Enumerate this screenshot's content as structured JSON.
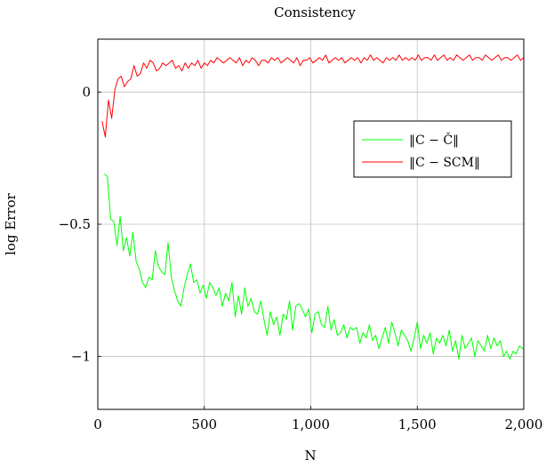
{
  "chart_data": {
    "type": "line",
    "title": "Consistency",
    "xlabel": "N",
    "ylabel": "log Error",
    "xlim": [
      0,
      2000
    ],
    "ylim": [
      -1.2,
      0.2
    ],
    "x_ticks": [
      0,
      500,
      1000,
      1500,
      2000
    ],
    "x_tick_labels": [
      "0",
      "500",
      "1,000",
      "1,500",
      "2,000"
    ],
    "y_ticks": [
      -1,
      -0.5,
      0
    ],
    "y_tick_labels": [
      "−1",
      "−0.5",
      "0"
    ],
    "grid": true,
    "legend_position": "right",
    "series": [
      {
        "name": "‖C − Č‖",
        "color": "#00ff00",
        "x": [
          30,
          45,
          60,
          75,
          90,
          105,
          120,
          135,
          150,
          165,
          180,
          195,
          210,
          225,
          240,
          255,
          270,
          285,
          300,
          315,
          330,
          345,
          360,
          375,
          390,
          405,
          420,
          435,
          450,
          465,
          480,
          495,
          510,
          525,
          540,
          555,
          570,
          585,
          600,
          615,
          630,
          645,
          660,
          675,
          690,
          705,
          720,
          735,
          750,
          765,
          780,
          795,
          810,
          825,
          840,
          855,
          870,
          885,
          900,
          915,
          930,
          945,
          960,
          975,
          990,
          1005,
          1020,
          1035,
          1050,
          1065,
          1080,
          1095,
          1110,
          1125,
          1140,
          1155,
          1170,
          1185,
          1200,
          1215,
          1230,
          1245,
          1260,
          1275,
          1290,
          1305,
          1320,
          1335,
          1350,
          1365,
          1380,
          1395,
          1410,
          1425,
          1440,
          1455,
          1470,
          1485,
          1500,
          1515,
          1530,
          1545,
          1560,
          1575,
          1590,
          1605,
          1620,
          1635,
          1650,
          1665,
          1680,
          1695,
          1710,
          1725,
          1740,
          1755,
          1770,
          1785,
          1800,
          1815,
          1830,
          1845,
          1860,
          1875,
          1890,
          1905,
          1920,
          1935,
          1950,
          1965,
          1980,
          1995,
          2000
        ],
        "values": [
          -0.31,
          -0.32,
          -0.48,
          -0.49,
          -0.58,
          -0.47,
          -0.6,
          -0.55,
          -0.62,
          -0.53,
          -0.64,
          -0.67,
          -0.72,
          -0.74,
          -0.7,
          -0.71,
          -0.6,
          -0.66,
          -0.68,
          -0.69,
          -0.57,
          -0.7,
          -0.75,
          -0.79,
          -0.81,
          -0.74,
          -0.69,
          -0.65,
          -0.72,
          -0.71,
          -0.76,
          -0.73,
          -0.78,
          -0.72,
          -0.74,
          -0.77,
          -0.74,
          -0.81,
          -0.76,
          -0.79,
          -0.72,
          -0.85,
          -0.77,
          -0.84,
          -0.74,
          -0.81,
          -0.78,
          -0.83,
          -0.84,
          -0.79,
          -0.86,
          -0.92,
          -0.83,
          -0.88,
          -0.85,
          -0.92,
          -0.84,
          -0.86,
          -0.79,
          -0.9,
          -0.81,
          -0.8,
          -0.82,
          -0.85,
          -0.82,
          -0.91,
          -0.84,
          -0.83,
          -0.88,
          -0.89,
          -0.81,
          -0.9,
          -0.86,
          -0.92,
          -0.91,
          -0.88,
          -0.93,
          -0.89,
          -0.9,
          -0.89,
          -0.95,
          -0.91,
          -0.93,
          -0.88,
          -0.94,
          -0.92,
          -0.97,
          -0.93,
          -0.89,
          -0.95,
          -0.87,
          -0.91,
          -0.96,
          -0.9,
          -0.92,
          -0.94,
          -0.98,
          -0.93,
          -0.87,
          -0.97,
          -0.92,
          -0.95,
          -0.91,
          -0.99,
          -0.93,
          -0.95,
          -0.92,
          -0.96,
          -0.9,
          -0.98,
          -0.94,
          -1.01,
          -0.92,
          -0.97,
          -0.95,
          -0.93,
          -1.0,
          -0.94,
          -0.96,
          -0.98,
          -0.92,
          -0.97,
          -0.93,
          -0.96,
          -0.94,
          -1.0,
          -0.98,
          -1.01,
          -0.98,
          -0.99,
          -0.96,
          -0.97,
          -0.97
        ]
      },
      {
        "name": "‖C − SCM‖",
        "color": "#ff0000",
        "x": [
          20,
          35,
          50,
          65,
          80,
          95,
          110,
          125,
          140,
          155,
          170,
          185,
          200,
          215,
          230,
          245,
          260,
          275,
          290,
          305,
          320,
          335,
          350,
          365,
          380,
          395,
          410,
          425,
          440,
          455,
          470,
          485,
          500,
          515,
          530,
          545,
          560,
          575,
          590,
          605,
          620,
          635,
          650,
          665,
          680,
          695,
          710,
          725,
          740,
          755,
          770,
          785,
          800,
          815,
          830,
          845,
          860,
          875,
          890,
          905,
          920,
          935,
          950,
          965,
          980,
          995,
          1010,
          1025,
          1040,
          1055,
          1070,
          1085,
          1100,
          1115,
          1130,
          1145,
          1160,
          1175,
          1190,
          1205,
          1220,
          1235,
          1250,
          1265,
          1280,
          1295,
          1310,
          1325,
          1340,
          1355,
          1370,
          1385,
          1400,
          1415,
          1430,
          1445,
          1460,
          1475,
          1490,
          1505,
          1520,
          1535,
          1550,
          1565,
          1580,
          1595,
          1610,
          1625,
          1640,
          1655,
          1670,
          1685,
          1700,
          1715,
          1730,
          1745,
          1760,
          1775,
          1790,
          1805,
          1820,
          1835,
          1850,
          1865,
          1880,
          1895,
          1910,
          1925,
          1940,
          1955,
          1970,
          1985,
          2000
        ],
        "values": [
          -0.11,
          -0.17,
          -0.03,
          -0.1,
          0.01,
          0.05,
          0.06,
          0.02,
          0.04,
          0.05,
          0.1,
          0.06,
          0.07,
          0.11,
          0.09,
          0.12,
          0.11,
          0.08,
          0.09,
          0.11,
          0.1,
          0.11,
          0.12,
          0.09,
          0.1,
          0.08,
          0.11,
          0.09,
          0.11,
          0.1,
          0.12,
          0.09,
          0.11,
          0.1,
          0.12,
          0.11,
          0.13,
          0.12,
          0.11,
          0.12,
          0.13,
          0.12,
          0.11,
          0.13,
          0.1,
          0.12,
          0.11,
          0.13,
          0.12,
          0.1,
          0.12,
          0.12,
          0.11,
          0.13,
          0.12,
          0.13,
          0.11,
          0.12,
          0.13,
          0.12,
          0.11,
          0.13,
          0.1,
          0.12,
          0.12,
          0.13,
          0.11,
          0.12,
          0.13,
          0.12,
          0.14,
          0.11,
          0.12,
          0.13,
          0.12,
          0.13,
          0.11,
          0.12,
          0.13,
          0.12,
          0.13,
          0.11,
          0.13,
          0.12,
          0.14,
          0.12,
          0.13,
          0.12,
          0.11,
          0.13,
          0.12,
          0.13,
          0.12,
          0.14,
          0.12,
          0.13,
          0.12,
          0.13,
          0.12,
          0.14,
          0.12,
          0.13,
          0.13,
          0.12,
          0.14,
          0.12,
          0.13,
          0.14,
          0.12,
          0.13,
          0.12,
          0.14,
          0.13,
          0.12,
          0.13,
          0.14,
          0.12,
          0.13,
          0.13,
          0.12,
          0.14,
          0.13,
          0.12,
          0.13,
          0.14,
          0.12,
          0.13,
          0.13,
          0.12,
          0.13,
          0.14,
          0.12,
          0.13
        ]
      }
    ]
  }
}
